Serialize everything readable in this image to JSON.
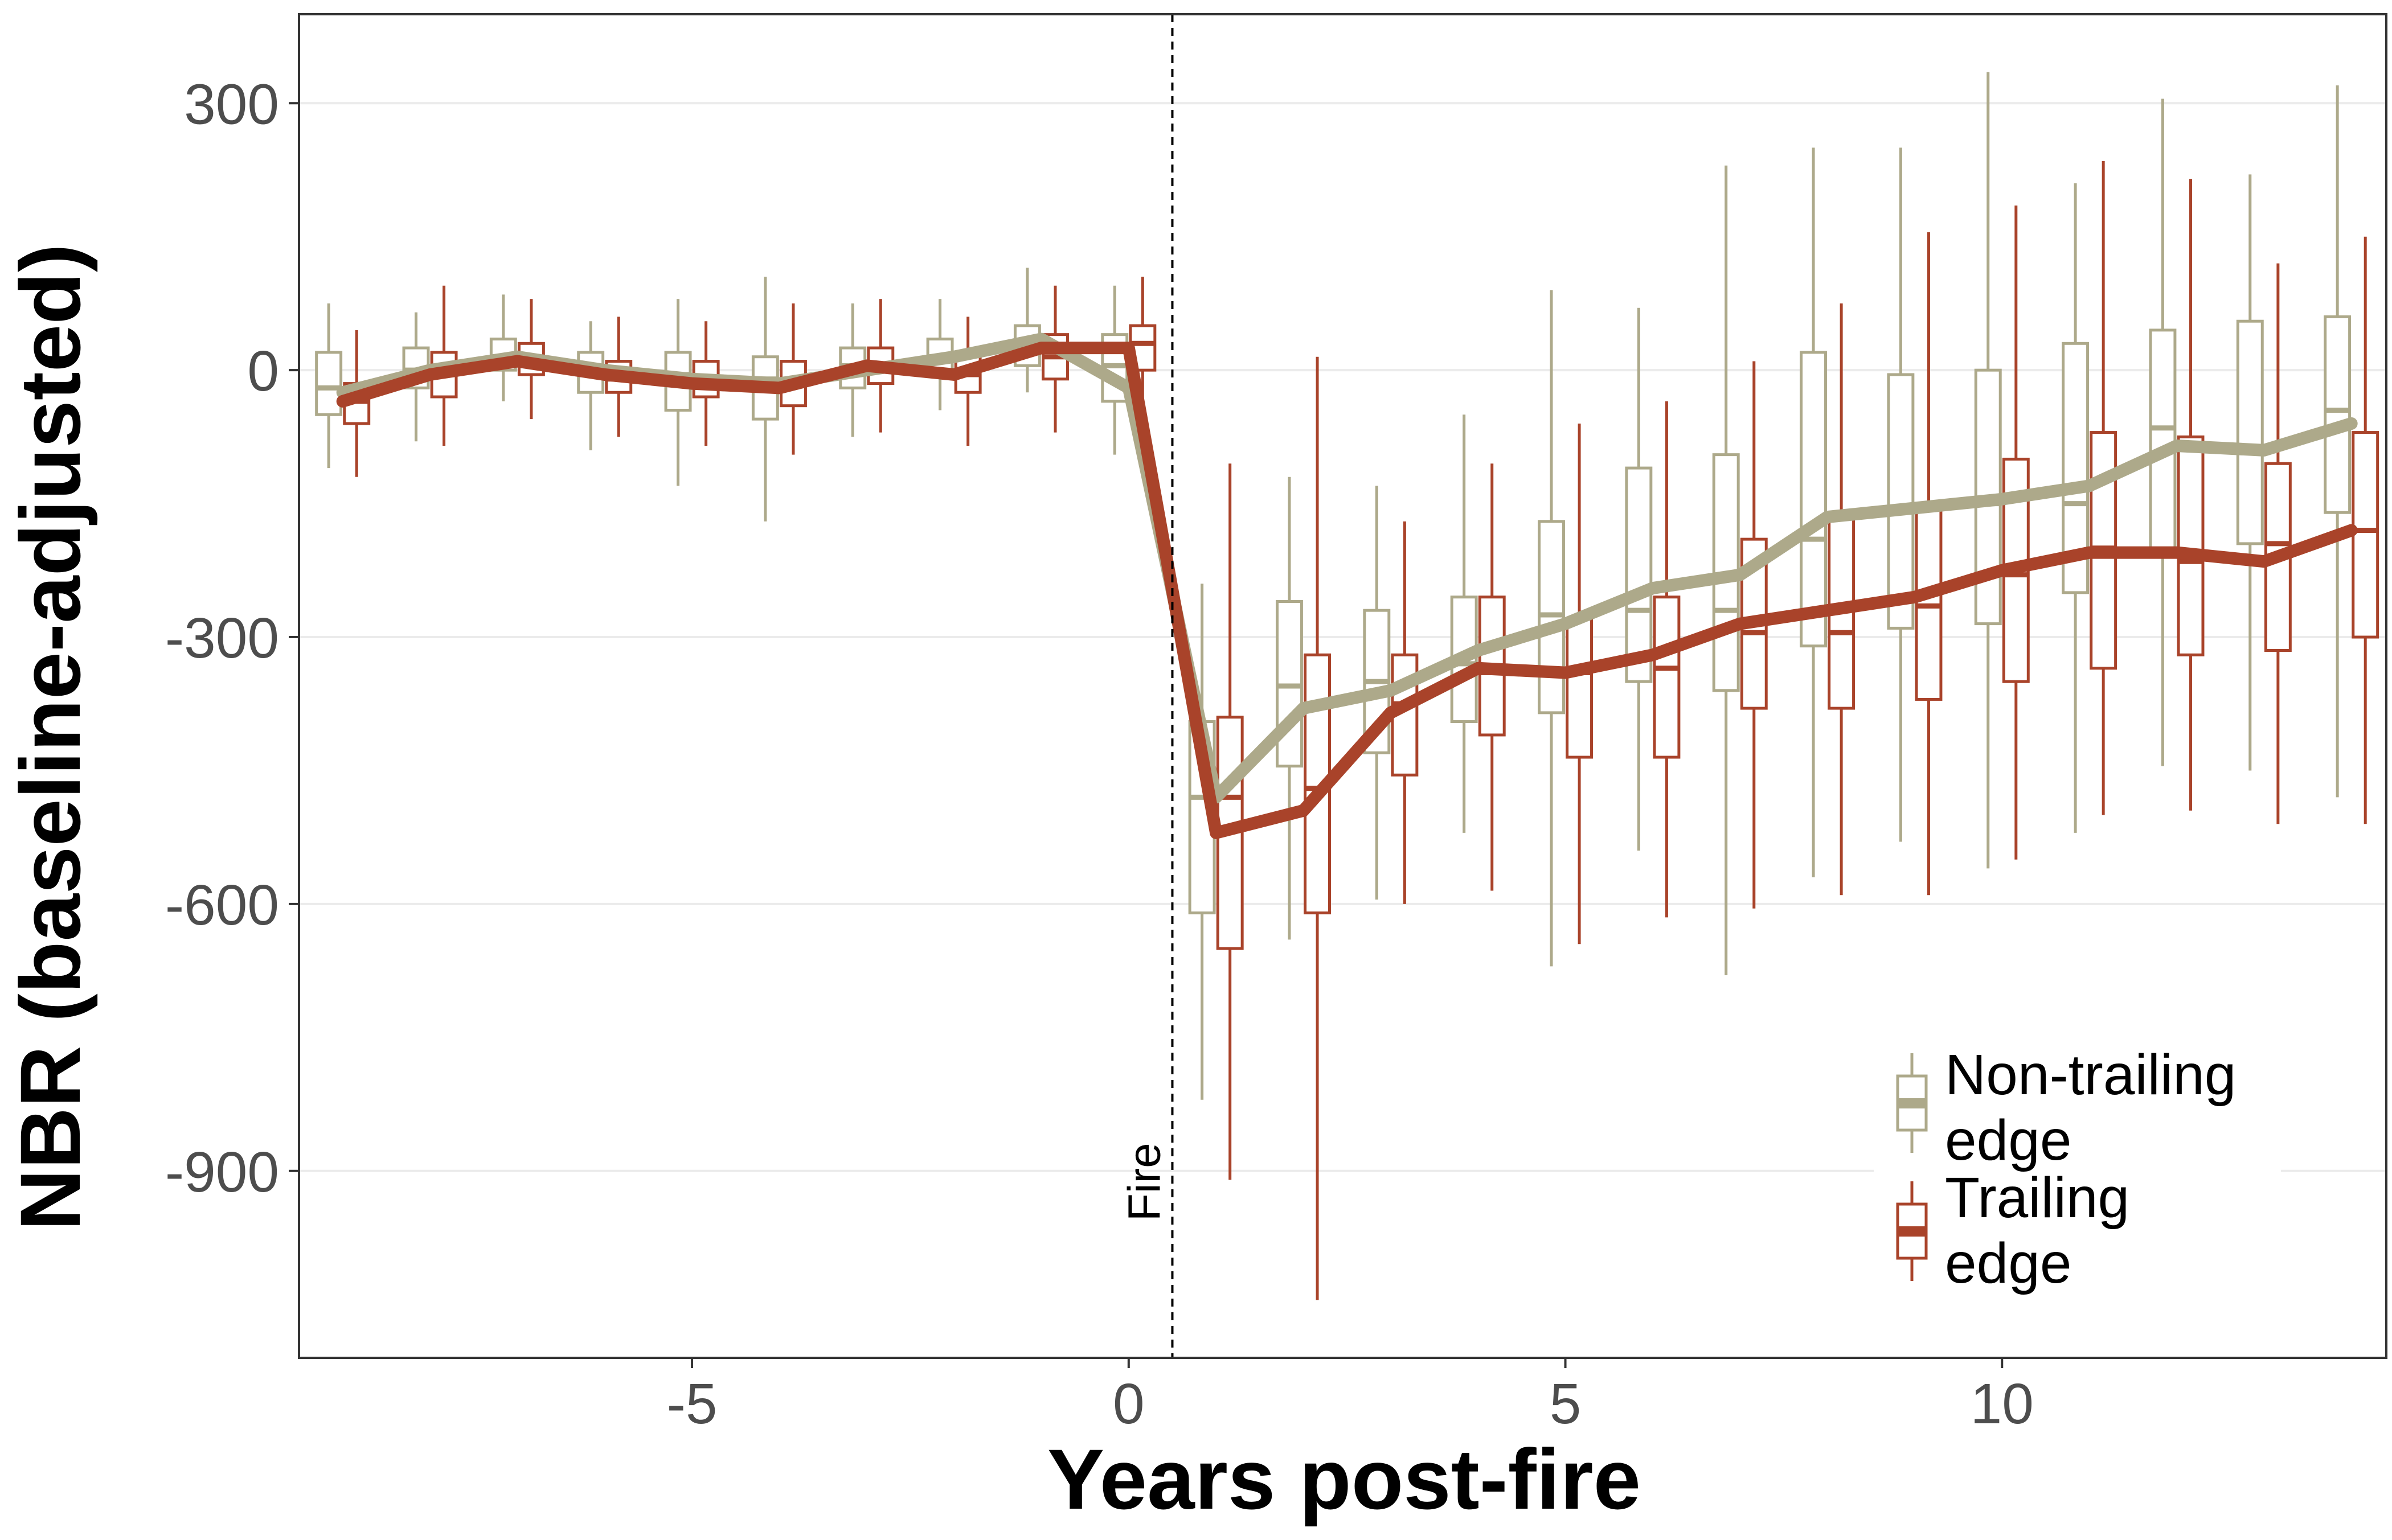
{
  "chart_data": {
    "type": "box-line",
    "title": "",
    "xlabel": "Years post-fire",
    "ylabel": "NBR (baseline-adjusted)",
    "xlim": [
      -9.5,
      14.4
    ],
    "ylim": [
      -1110,
      400
    ],
    "x_ticks": [
      -5,
      0,
      5,
      10
    ],
    "x_tick_labels": [
      "-5",
      "0",
      "5",
      "10"
    ],
    "y_ticks": [
      300,
      0,
      -300,
      -600,
      -900
    ],
    "y_tick_labels": [
      "300",
      "0",
      "-300",
      "-600",
      "-900"
    ],
    "grid": "horizontal major gridlines",
    "annotation": {
      "label": "Fire",
      "x": 0.5,
      "line_style": "dashed"
    },
    "legend": {
      "position": "bottom-right",
      "entries": [
        {
          "line1": "Non-trailing",
          "line2": "edge",
          "series": 0
        },
        {
          "line1": "Trailing",
          "line2": "edge",
          "series": 1
        }
      ]
    },
    "x": [
      -9,
      -8,
      -7,
      -6,
      -5,
      -4,
      -3,
      -2,
      -1,
      0,
      1,
      2,
      3,
      4,
      5,
      6,
      7,
      8,
      9,
      10,
      11,
      12,
      13,
      14
    ],
    "series": [
      {
        "name": "Non-trailing edge",
        "color": "#ada98a",
        "mean_line": [
          -25,
          0,
          15,
          0,
          -10,
          -15,
          0,
          15,
          35,
          -20,
          -480,
          -380,
          -360,
          -315,
          -285,
          -245,
          -230,
          -165,
          -155,
          -145,
          -130,
          -85,
          -90,
          -60
        ],
        "boxes": [
          {
            "x": -9,
            "min": -110,
            "q1": -50,
            "median": -20,
            "q3": 20,
            "max": 75
          },
          {
            "x": -8,
            "min": -80,
            "q1": -20,
            "median": 0,
            "q3": 25,
            "max": 65
          },
          {
            "x": -7,
            "min": -35,
            "q1": 0,
            "median": 15,
            "q3": 35,
            "max": 85
          },
          {
            "x": -6,
            "min": -90,
            "q1": -25,
            "median": -5,
            "q3": 20,
            "max": 55
          },
          {
            "x": -5,
            "min": -130,
            "q1": -45,
            "median": -5,
            "q3": 20,
            "max": 80
          },
          {
            "x": -4,
            "min": -170,
            "q1": -55,
            "median": -10,
            "q3": 15,
            "max": 105
          },
          {
            "x": -3,
            "min": -75,
            "q1": -20,
            "median": 5,
            "q3": 25,
            "max": 75
          },
          {
            "x": -2,
            "min": -45,
            "q1": -5,
            "median": 15,
            "q3": 35,
            "max": 80
          },
          {
            "x": -1,
            "min": -25,
            "q1": 5,
            "median": 25,
            "q3": 50,
            "max": 115
          },
          {
            "x": 0,
            "min": -95,
            "q1": -35,
            "median": 5,
            "q3": 40,
            "max": 95
          },
          {
            "x": 1,
            "min": -820,
            "q1": -610,
            "median": -480,
            "q3": -395,
            "max": -240
          },
          {
            "x": 2,
            "min": -640,
            "q1": -445,
            "median": -355,
            "q3": -260,
            "max": -120
          },
          {
            "x": 3,
            "min": -595,
            "q1": -430,
            "median": -350,
            "q3": -270,
            "max": -130
          },
          {
            "x": 4,
            "min": -520,
            "q1": -395,
            "median": -330,
            "q3": -255,
            "max": -50
          },
          {
            "x": 5,
            "min": -670,
            "q1": -385,
            "median": -275,
            "q3": -170,
            "max": 90
          },
          {
            "x": 6,
            "min": -540,
            "q1": -350,
            "median": -270,
            "q3": -110,
            "max": 70
          },
          {
            "x": 7,
            "min": -680,
            "q1": -360,
            "median": -270,
            "q3": -95,
            "max": 230
          },
          {
            "x": 8,
            "min": -570,
            "q1": -310,
            "median": -190,
            "q3": 20,
            "max": 250
          },
          {
            "x": 9,
            "min": -530,
            "q1": -290,
            "median": -155,
            "q3": -5,
            "max": 250
          },
          {
            "x": 10,
            "min": -560,
            "q1": -285,
            "median": -150,
            "q3": 0,
            "max": 335
          },
          {
            "x": 11,
            "min": -520,
            "q1": -250,
            "median": -150,
            "q3": 30,
            "max": 210
          },
          {
            "x": 12,
            "min": -445,
            "q1": -210,
            "median": -65,
            "q3": 45,
            "max": 305
          },
          {
            "x": 13,
            "min": -450,
            "q1": -195,
            "median": -90,
            "q3": 55,
            "max": 220
          },
          {
            "x": 14,
            "min": -480,
            "q1": -160,
            "median": -45,
            "q3": 60,
            "max": 320
          }
        ]
      },
      {
        "name": "Trailing edge",
        "color": "#a9432a",
        "mean_line": [
          -35,
          -5,
          10,
          -5,
          -15,
          -20,
          5,
          -5,
          25,
          25,
          -520,
          -495,
          -385,
          -335,
          -340,
          -320,
          -285,
          -270,
          -255,
          -225,
          -205,
          -205,
          -215,
          -180
        ],
        "boxes": [
          {
            "x": -9,
            "min": -120,
            "q1": -60,
            "median": -35,
            "q3": -15,
            "max": 45
          },
          {
            "x": -8,
            "min": -85,
            "q1": -30,
            "median": -5,
            "q3": 20,
            "max": 95
          },
          {
            "x": -7,
            "min": -55,
            "q1": -5,
            "median": 10,
            "q3": 30,
            "max": 80
          },
          {
            "x": -6,
            "min": -75,
            "q1": -25,
            "median": -10,
            "q3": 10,
            "max": 60
          },
          {
            "x": -5,
            "min": -85,
            "q1": -30,
            "median": -15,
            "q3": 10,
            "max": 55
          },
          {
            "x": -4,
            "min": -95,
            "q1": -40,
            "median": -15,
            "q3": 10,
            "max": 75
          },
          {
            "x": -3,
            "min": -70,
            "q1": -15,
            "median": 5,
            "q3": 25,
            "max": 80
          },
          {
            "x": -2,
            "min": -85,
            "q1": -25,
            "median": -5,
            "q3": 20,
            "max": 60
          },
          {
            "x": -1,
            "min": -70,
            "q1": -10,
            "median": 15,
            "q3": 40,
            "max": 95
          },
          {
            "x": 0,
            "min": -55,
            "q1": 0,
            "median": 30,
            "q3": 50,
            "max": 105
          },
          {
            "x": 1,
            "min": -910,
            "q1": -650,
            "median": -480,
            "q3": -390,
            "max": -105
          },
          {
            "x": 2,
            "min": -1045,
            "q1": -610,
            "median": -470,
            "q3": -320,
            "max": 15
          },
          {
            "x": 3,
            "min": -600,
            "q1": -455,
            "median": -375,
            "q3": -320,
            "max": -170
          },
          {
            "x": 4,
            "min": -585,
            "q1": -410,
            "median": -340,
            "q3": -255,
            "max": -105
          },
          {
            "x": 5,
            "min": -645,
            "q1": -435,
            "median": -340,
            "q3": -280,
            "max": -60
          },
          {
            "x": 6,
            "min": -615,
            "q1": -435,
            "median": -335,
            "q3": -255,
            "max": -35
          },
          {
            "x": 7,
            "min": -605,
            "q1": -380,
            "median": -295,
            "q3": -190,
            "max": 10
          },
          {
            "x": 8,
            "min": -590,
            "q1": -380,
            "median": -295,
            "q3": -165,
            "max": 75
          },
          {
            "x": 9,
            "min": -590,
            "q1": -370,
            "median": -265,
            "q3": -150,
            "max": 155
          },
          {
            "x": 10,
            "min": -550,
            "q1": -350,
            "median": -230,
            "q3": -100,
            "max": 185
          },
          {
            "x": 11,
            "min": -500,
            "q1": -335,
            "median": -200,
            "q3": -70,
            "max": 235
          },
          {
            "x": 12,
            "min": -495,
            "q1": -320,
            "median": -215,
            "q3": -75,
            "max": 215
          },
          {
            "x": 13,
            "min": -510,
            "q1": -315,
            "median": -195,
            "q3": -105,
            "max": 120
          },
          {
            "x": 14,
            "min": -510,
            "q1": -300,
            "median": -180,
            "q3": -70,
            "max": 150
          }
        ]
      }
    ]
  }
}
